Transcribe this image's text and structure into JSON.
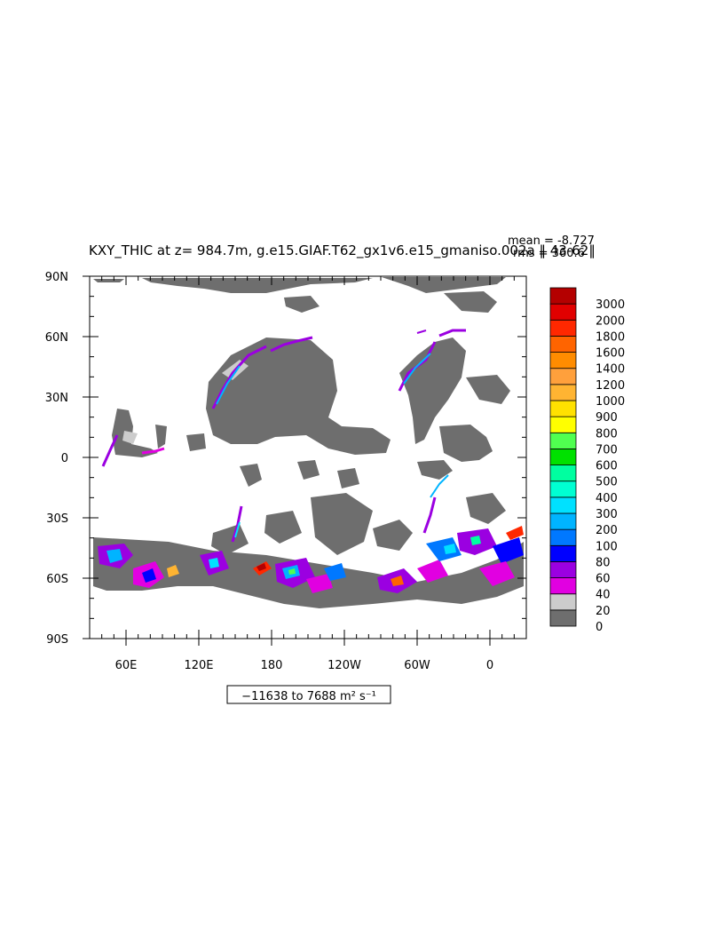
{
  "chart_data": {
    "type": "heatmap",
    "title": "KXY_THIC at z= 984.7m, g.e15.GIAF.T62_gx1v6.e15_gmaniso.002a ‖ 43-62‖",
    "stats": {
      "mean": "mean = -8.727",
      "rms": "rms = 360.6"
    },
    "range_note": "−11638 to 7688 m² s⁻¹",
    "x_ticks": [
      {
        "label": "60E",
        "lon": 60
      },
      {
        "label": "120E",
        "lon": 120
      },
      {
        "label": "180",
        "lon": 180
      },
      {
        "label": "120W",
        "lon": 240
      },
      {
        "label": "60W",
        "lon": 300
      },
      {
        "label": "0",
        "lon": 360
      }
    ],
    "y_ticks": [
      {
        "label": "90N",
        "lat": 90
      },
      {
        "label": "60N",
        "lat": 60
      },
      {
        "label": "30N",
        "lat": 30
      },
      {
        "label": "0",
        "lat": 0
      },
      {
        "label": "30S",
        "lat": -30
      },
      {
        "label": "60S",
        "lat": -60
      },
      {
        "label": "90S",
        "lat": -90
      }
    ],
    "xlim": [
      30,
      390
    ],
    "ylim": [
      -90,
      90
    ],
    "colorbar": {
      "levels": [
        "0",
        "20",
        "40",
        "60",
        "80",
        "100",
        "200",
        "300",
        "400",
        "500",
        "600",
        "700",
        "800",
        "900",
        "1000",
        "1200",
        "1400",
        "1600",
        "1800",
        "2000",
        "3000"
      ],
      "colors": [
        "#6e6e6e",
        "#cccccc",
        "#e100e1",
        "#9b00e1",
        "#0000ff",
        "#0078ff",
        "#00b4ff",
        "#00e1ff",
        "#00ffd2",
        "#00ffa0",
        "#00e100",
        "#50ff50",
        "#ffff00",
        "#ffe100",
        "#ffb432",
        "#ffa03c",
        "#ff8c00",
        "#ff6400",
        "#ff2800",
        "#e10000",
        "#b40000"
      ]
    }
  }
}
